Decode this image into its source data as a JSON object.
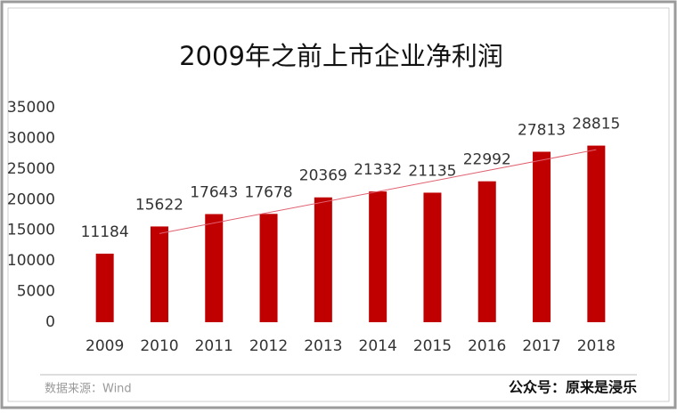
{
  "chart_data": {
    "type": "bar",
    "title": "2009年之前上市企业净利润",
    "categories": [
      "2009",
      "2010",
      "2011",
      "2012",
      "2013",
      "2014",
      "2015",
      "2016",
      "2017",
      "2018"
    ],
    "values": [
      11184,
      15622,
      17643,
      17678,
      20369,
      21332,
      21135,
      22992,
      27813,
      28815
    ],
    "color": "#c00000",
    "trendline_color": "#e06070",
    "ylim": [
      0,
      35000
    ],
    "yticks": [
      0,
      5000,
      10000,
      15000,
      20000,
      25000,
      30000,
      35000
    ],
    "source": "数据来源：Wind",
    "credit": "公众号：原来是浸乐"
  }
}
